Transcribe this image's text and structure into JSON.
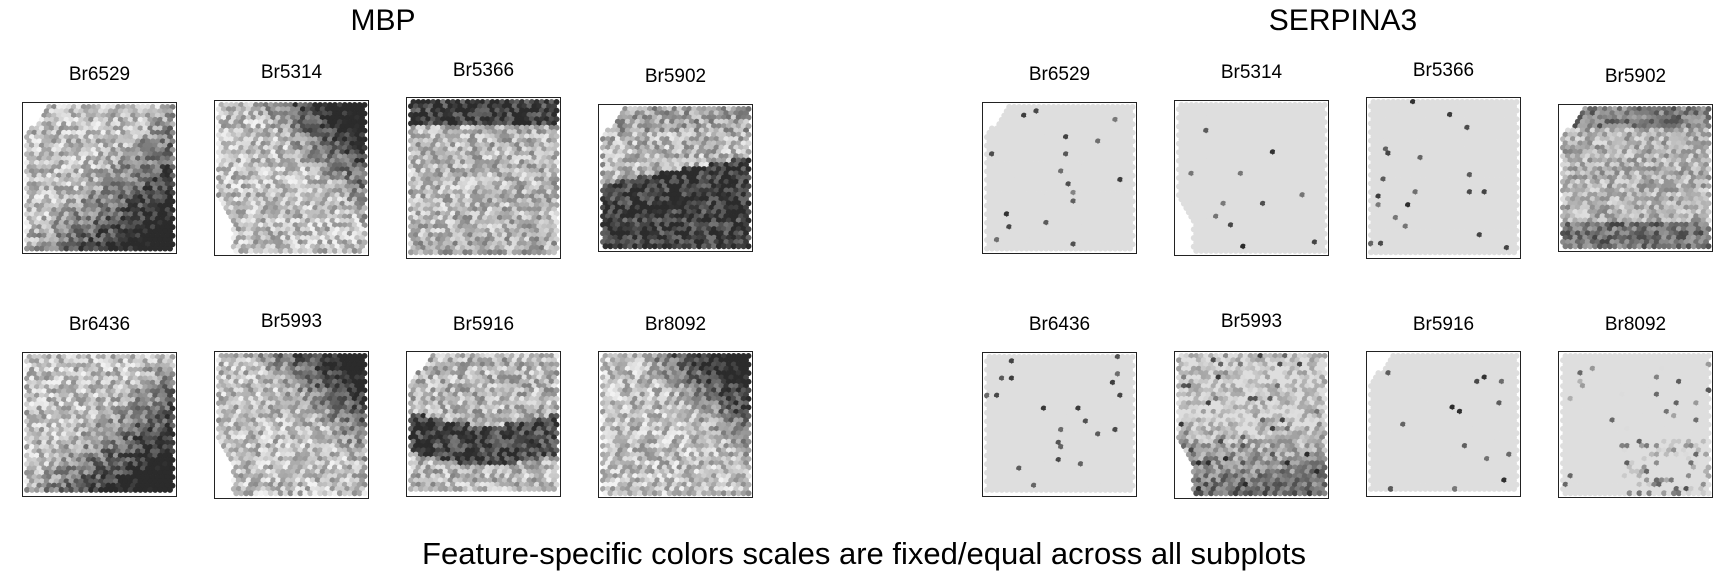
{
  "groups": [
    {
      "title": "MBP",
      "colormap": [
        "#f2f2f2",
        "#2b2b2b"
      ],
      "panels": [
        {
          "label": "Br6529",
          "pattern": "mbp-corner-br"
        },
        {
          "label": "Br5314",
          "pattern": "mbp-corner-tr"
        },
        {
          "label": "Br5366",
          "pattern": "mbp-top-band"
        },
        {
          "label": "Br5902",
          "pattern": "mbp-lower-band"
        },
        {
          "label": "Br6436",
          "pattern": "mbp-corner-br"
        },
        {
          "label": "Br5993",
          "pattern": "mbp-corner-tr"
        },
        {
          "label": "Br5916",
          "pattern": "mbp-mid-band"
        },
        {
          "label": "Br8092",
          "pattern": "mbp-corner-tr"
        }
      ]
    },
    {
      "title": "SERPINA3",
      "colormap": [
        "#dedede",
        "#2b2b2b"
      ],
      "panels": [
        {
          "label": "Br6529",
          "pattern": "sparse"
        },
        {
          "label": "Br5314",
          "pattern": "sparse"
        },
        {
          "label": "Br5366",
          "pattern": "sparse"
        },
        {
          "label": "Br5902",
          "pattern": "dense"
        },
        {
          "label": "Br6436",
          "pattern": "sparse"
        },
        {
          "label": "Br5993",
          "pattern": "dense-lower"
        },
        {
          "label": "Br5916",
          "pattern": "sparse"
        },
        {
          "label": "Br8092",
          "pattern": "sparse-lower"
        }
      ]
    }
  ],
  "footer": "Feature-specific colors scales are fixed/equal across all subplots"
}
